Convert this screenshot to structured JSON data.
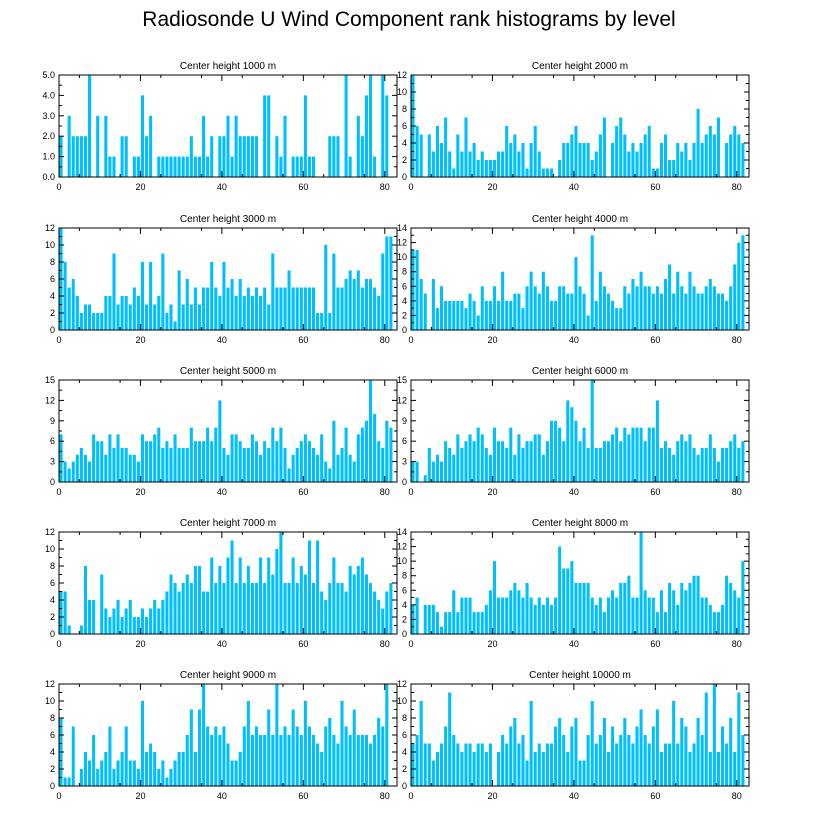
{
  "title": "Radiosonde U Wind Component rank histograms by level",
  "bar_color": "#00bfff",
  "chart_data": [
    {
      "type": "bar",
      "title": "Center height 1000 m",
      "ylim": [
        0,
        5
      ],
      "yticks": [
        "0.0",
        "1.0",
        "2.0",
        "3.0",
        "4.0",
        "5.0"
      ],
      "xticks": [
        "0",
        "20",
        "40",
        "60",
        "80"
      ],
      "values": [
        2,
        0,
        3,
        2,
        2,
        2,
        2,
        5,
        0,
        3,
        0,
        3,
        1,
        1,
        0,
        2,
        2,
        0,
        1,
        1,
        4,
        2,
        3,
        0,
        1,
        1,
        1,
        1,
        1,
        1,
        1,
        1,
        2,
        1,
        1,
        3,
        1,
        2,
        0,
        2,
        2,
        3,
        1,
        3,
        2,
        2,
        2,
        2,
        2,
        0,
        4,
        4,
        0,
        2,
        1,
        3,
        0,
        1,
        1,
        1,
        4,
        1,
        1,
        0,
        0,
        0,
        2,
        2,
        2,
        0,
        5,
        1,
        0,
        3,
        2,
        4,
        5,
        1,
        0,
        5,
        4
      ]
    },
    {
      "type": "bar",
      "title": "Center height 2000 m",
      "ylim": [
        0,
        12
      ],
      "yticks": [
        "0",
        "2",
        "4",
        "6",
        "8",
        "10",
        "12"
      ],
      "xticks": [
        "0",
        "20",
        "40",
        "60",
        "80"
      ],
      "values": [
        12,
        6,
        5,
        0,
        5,
        3,
        6,
        4,
        7,
        3,
        1,
        5,
        3,
        7,
        3,
        4,
        2,
        3,
        2,
        2,
        2,
        3,
        3,
        6,
        4,
        5,
        3,
        4,
        1,
        4,
        6,
        3,
        1,
        1,
        1,
        0,
        2,
        4,
        4,
        5,
        6,
        4,
        4,
        4,
        2,
        3,
        5,
        7,
        0,
        4,
        6,
        7,
        5,
        3,
        4,
        3,
        4,
        5,
        6,
        1,
        1,
        4,
        5,
        2,
        2,
        4,
        3,
        4,
        2,
        4,
        8,
        4,
        5,
        6,
        5,
        7,
        0,
        4,
        5,
        6,
        5,
        4
      ]
    },
    {
      "type": "bar",
      "title": "Center height 3000 m",
      "ylim": [
        0,
        12
      ],
      "yticks": [
        "0",
        "2",
        "4",
        "6",
        "8",
        "10",
        "12"
      ],
      "xticks": [
        "0",
        "20",
        "40",
        "60",
        "80"
      ],
      "values": [
        12,
        8,
        5,
        6,
        4,
        2,
        3,
        3,
        2,
        2,
        2,
        4,
        4,
        9,
        3,
        4,
        4,
        3,
        5,
        4,
        8,
        3,
        8,
        3,
        4,
        9,
        2,
        3,
        1,
        7,
        3,
        6,
        3,
        5,
        3,
        5,
        5,
        8,
        5,
        4,
        8,
        5,
        6,
        4,
        6,
        4,
        5,
        4,
        5,
        4,
        5,
        3,
        9,
        5,
        5,
        5,
        7,
        5,
        5,
        5,
        5,
        5,
        5,
        2,
        2,
        10,
        2,
        9,
        5,
        5,
        6,
        7,
        6,
        7,
        5,
        6,
        6,
        5,
        4,
        9,
        11,
        11
      ]
    },
    {
      "type": "bar",
      "title": "Center height 4000 m",
      "ylim": [
        0,
        14
      ],
      "yticks": [
        "0",
        "2",
        "4",
        "6",
        "8",
        "10",
        "12",
        "14"
      ],
      "xticks": [
        "0",
        "20",
        "40",
        "60",
        "80"
      ],
      "values": [
        11,
        11,
        7,
        5,
        0,
        7,
        3,
        6,
        4,
        4,
        4,
        4,
        4,
        3,
        5,
        4,
        2,
        6,
        4,
        4,
        6,
        4,
        8,
        4,
        4,
        5,
        5,
        3,
        6,
        8,
        6,
        5,
        8,
        6,
        4,
        4,
        6,
        6,
        5,
        5,
        10,
        6,
        5,
        2,
        13,
        4,
        8,
        6,
        5,
        4,
        3,
        3,
        6,
        5,
        7,
        6,
        8,
        6,
        6,
        5,
        6,
        5,
        7,
        9,
        5,
        8,
        6,
        5,
        8,
        6,
        5,
        5,
        6,
        7,
        6,
        5,
        5,
        4,
        6,
        9,
        12,
        13
      ]
    },
    {
      "type": "bar",
      "title": "Center height 5000 m",
      "ylim": [
        0,
        15
      ],
      "yticks": [
        "0",
        "3",
        "6",
        "9",
        "12",
        "15"
      ],
      "xticks": [
        "0",
        "20",
        "40",
        "60",
        "80"
      ],
      "values": [
        7,
        3,
        2,
        3,
        4,
        5,
        4,
        3,
        7,
        6,
        6,
        4,
        7,
        5,
        7,
        5,
        5,
        4,
        4,
        3,
        7,
        6,
        6,
        7,
        8,
        5,
        6,
        5,
        7,
        5,
        5,
        5,
        8,
        6,
        6,
        6,
        8,
        6,
        8,
        12,
        5,
        4,
        7,
        7,
        6,
        5,
        5,
        7,
        6,
        4,
        6,
        5,
        8,
        6,
        8,
        5,
        2,
        4,
        5,
        6,
        7,
        6,
        5,
        4,
        7,
        3,
        2,
        9,
        4,
        5,
        8,
        4,
        3,
        7,
        8,
        9,
        15,
        10,
        6,
        5,
        9,
        8
      ]
    },
    {
      "type": "bar",
      "title": "Center height 6000 m",
      "ylim": [
        0,
        15
      ],
      "yticks": [
        "0",
        "3",
        "6",
        "9",
        "12",
        "15"
      ],
      "xticks": [
        "0",
        "20",
        "40",
        "60",
        "80"
      ],
      "values": [
        3,
        3,
        0,
        1,
        5,
        3,
        4,
        3,
        6,
        5,
        4,
        7,
        5,
        6,
        7,
        6,
        8,
        7,
        5,
        4,
        8,
        6,
        6,
        5,
        8,
        4,
        7,
        5,
        6,
        6,
        7,
        7,
        4,
        6,
        9,
        9,
        8,
        6,
        12,
        11,
        9,
        6,
        8,
        5,
        15,
        5,
        5,
        6,
        6,
        7,
        8,
        6,
        8,
        7,
        8,
        8,
        8,
        6,
        8,
        8,
        12,
        5,
        6,
        5,
        4,
        6,
        7,
        6,
        7,
        5,
        4,
        5,
        5,
        7,
        5,
        3,
        5,
        5,
        6,
        7,
        5,
        6
      ]
    },
    {
      "type": "bar",
      "title": "Center height 7000 m",
      "ylim": [
        0,
        12
      ],
      "yticks": [
        "0",
        "2",
        "4",
        "6",
        "8",
        "10",
        "12"
      ],
      "xticks": [
        "0",
        "20",
        "40",
        "60",
        "80"
      ],
      "values": [
        5,
        5,
        1,
        0,
        0,
        1,
        8,
        4,
        4,
        0,
        7,
        3,
        2,
        3,
        4,
        2,
        3,
        4,
        2,
        2,
        3,
        2,
        3,
        4,
        3,
        4,
        5,
        7,
        6,
        5,
        6,
        7,
        6,
        8,
        8,
        5,
        5,
        9,
        6,
        8,
        6,
        9,
        11,
        6,
        9,
        6,
        8,
        6,
        6,
        9,
        6,
        9,
        7,
        10,
        12,
        6,
        6,
        9,
        6,
        8,
        7,
        11,
        6,
        11,
        5,
        4,
        6,
        9,
        6,
        6,
        5,
        8,
        7,
        8,
        9,
        7,
        6,
        5,
        4,
        3,
        5,
        6
      ]
    },
    {
      "type": "bar",
      "title": "Center height 8000 m",
      "ylim": [
        0,
        14
      ],
      "yticks": [
        "0",
        "2",
        "4",
        "6",
        "8",
        "10",
        "12",
        "14"
      ],
      "xticks": [
        "0",
        "20",
        "40",
        "60",
        "80"
      ],
      "values": [
        4,
        5,
        0,
        4,
        4,
        4,
        3,
        1,
        3,
        3,
        6,
        3,
        5,
        5,
        5,
        3,
        3,
        3,
        4,
        6,
        10,
        5,
        5,
        5,
        6,
        7,
        6,
        5,
        7,
        5,
        4,
        5,
        4,
        5,
        4,
        5,
        12,
        9,
        9,
        10,
        7,
        7,
        7,
        7,
        5,
        4,
        5,
        3,
        5,
        6,
        5,
        7,
        7,
        8,
        5,
        5,
        14,
        6,
        5,
        5,
        3,
        6,
        3,
        7,
        6,
        4,
        7,
        6,
        7,
        8,
        8,
        5,
        5,
        4,
        3,
        3,
        4,
        8,
        7,
        6,
        5,
        10
      ]
    },
    {
      "type": "bar",
      "title": "Center height 9000 m",
      "ylim": [
        0,
        12
      ],
      "yticks": [
        "0",
        "2",
        "4",
        "6",
        "8",
        "10",
        "12"
      ],
      "xticks": [
        "0",
        "20",
        "40",
        "60",
        "80"
      ],
      "values": [
        8,
        1,
        1,
        7,
        0,
        2,
        4,
        3,
        6,
        2,
        3,
        4,
        7,
        2,
        3,
        4,
        7,
        3,
        3,
        2,
        10,
        4,
        5,
        4,
        2,
        3,
        1,
        2,
        3,
        4,
        4,
        6,
        9,
        4,
        9,
        12,
        7,
        6,
        7,
        6,
        7,
        5,
        3,
        3,
        4,
        7,
        10,
        6,
        7,
        6,
        6,
        9,
        6,
        12,
        6,
        7,
        6,
        9,
        7,
        6,
        10,
        7,
        6,
        5,
        4,
        7,
        8,
        6,
        5,
        10,
        7,
        6,
        9,
        6,
        6,
        6,
        5,
        6,
        8,
        7,
        12
      ]
    },
    {
      "type": "bar",
      "title": "Center height 10000 m",
      "ylim": [
        0,
        12
      ],
      "yticks": [
        "0",
        "2",
        "4",
        "6",
        "8",
        "10",
        "12"
      ],
      "xticks": [
        "0",
        "20",
        "40",
        "60",
        "80"
      ],
      "values": [
        5,
        6,
        10,
        5,
        5,
        3,
        4,
        5,
        7,
        11,
        6,
        5,
        4,
        5,
        5,
        4,
        5,
        5,
        4,
        5,
        0,
        4,
        6,
        5,
        7,
        8,
        5,
        6,
        3,
        10,
        4,
        5,
        4,
        5,
        5,
        7,
        8,
        6,
        4,
        7,
        8,
        3,
        3,
        6,
        10,
        5,
        6,
        8,
        4,
        7,
        5,
        6,
        8,
        6,
        5,
        7,
        9,
        6,
        5,
        7,
        9,
        4,
        5,
        5,
        10,
        5,
        8,
        7,
        4,
        5,
        8,
        6,
        11,
        4,
        12,
        4,
        7,
        5,
        8,
        4,
        11,
        6
      ]
    }
  ]
}
